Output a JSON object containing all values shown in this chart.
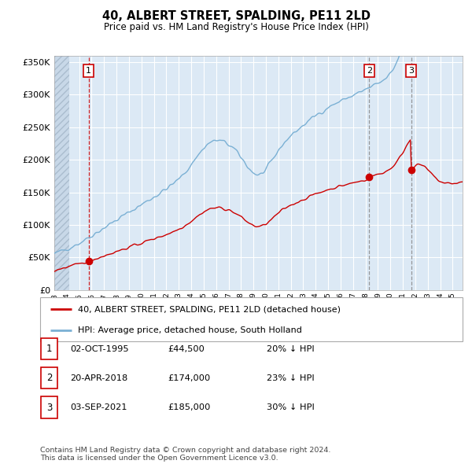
{
  "title": "40, ALBERT STREET, SPALDING, PE11 2LD",
  "subtitle": "Price paid vs. HM Land Registry's House Price Index (HPI)",
  "ylim": [
    0,
    360000
  ],
  "yticks": [
    0,
    50000,
    100000,
    150000,
    200000,
    250000,
    300000,
    350000
  ],
  "background_color": "#ffffff",
  "plot_bg_color": "#dce9f5",
  "grid_color": "#ffffff",
  "transaction_color": "#cc0000",
  "hpi_color": "#7ab0d4",
  "transactions": [
    {
      "date_num": 1995.75,
      "price": 44500,
      "label": "1"
    },
    {
      "date_num": 2018.3,
      "price": 174000,
      "label": "2"
    },
    {
      "date_num": 2021.67,
      "price": 185000,
      "label": "3"
    }
  ],
  "vline_colors": [
    "#cc0000",
    "#888888",
    "#888888"
  ],
  "legend_entry1": "40, ALBERT STREET, SPALDING, PE11 2LD (detached house)",
  "legend_entry2": "HPI: Average price, detached house, South Holland",
  "table_rows": [
    {
      "num": "1",
      "date": "02-OCT-1995",
      "price": "£44,500",
      "hpi": "20% ↓ HPI"
    },
    {
      "num": "2",
      "date": "20-APR-2018",
      "price": "£174,000",
      "hpi": "23% ↓ HPI"
    },
    {
      "num": "3",
      "date": "03-SEP-2021",
      "price": "£185,000",
      "hpi": "30% ↓ HPI"
    }
  ],
  "footnote": "Contains HM Land Registry data © Crown copyright and database right 2024.\nThis data is licensed under the Open Government Licence v3.0.",
  "xmin": 1993.0,
  "xmax": 2025.8,
  "hpi_seed": 42,
  "red_scale_before_2018": 0.78,
  "red_scale_after_2018": 0.72
}
